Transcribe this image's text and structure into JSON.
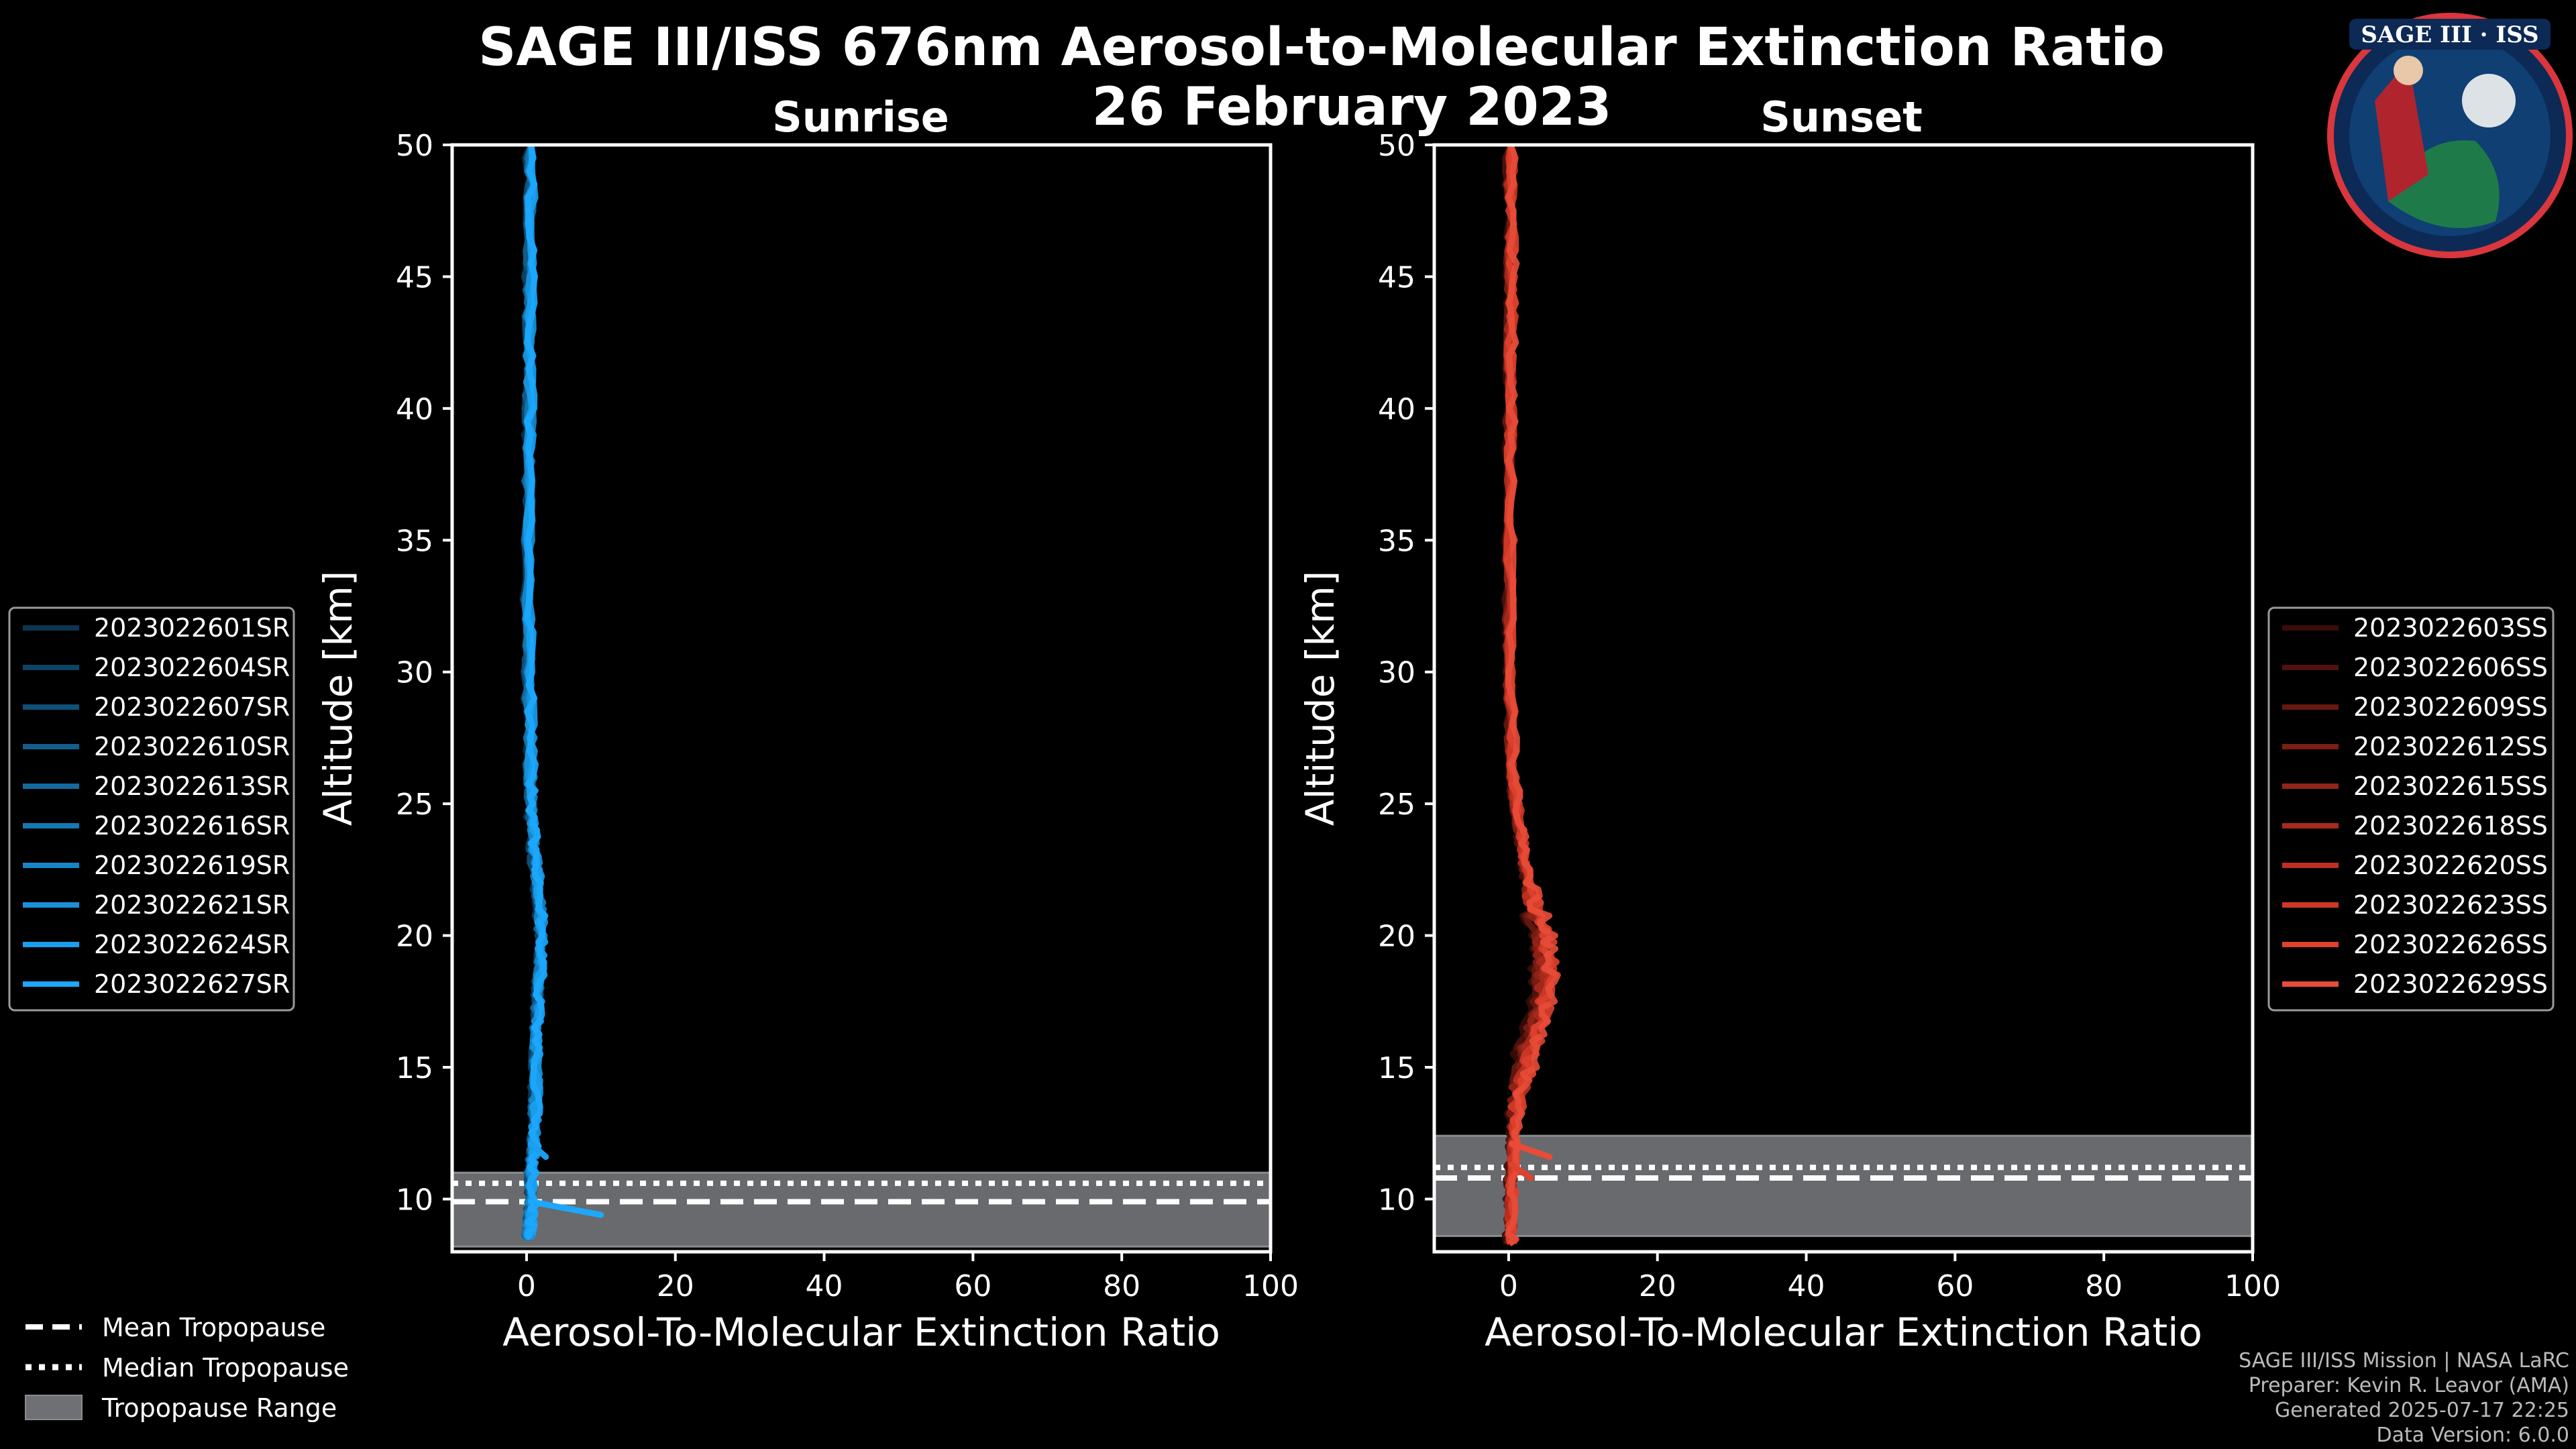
{
  "title_line1": "SAGE III/ISS 676nm Aerosol-to-Molecular Extinction Ratio",
  "title_line2": "26 February 2023",
  "logo": {
    "text": "SAGE III · ISS",
    "icon": "sage-mission-patch"
  },
  "chart_data": [
    {
      "type": "line",
      "panel": "sunrise",
      "title": "Sunrise",
      "xlabel": "Aerosol-To-Molecular Extinction Ratio",
      "ylabel": "Altitude [km]",
      "xlim": [
        -10,
        100
      ],
      "ylim": [
        8,
        50
      ],
      "xticks": [
        "0",
        "20",
        "40",
        "60",
        "80",
        "100"
      ],
      "yticks": [
        "10",
        "15",
        "20",
        "25",
        "30",
        "35",
        "40",
        "45",
        "50"
      ],
      "tropopause": {
        "mean": 9.9,
        "median": 10.6,
        "range": [
          8.2,
          11.0
        ]
      },
      "colors": [
        "#0b3552",
        "#0d4366",
        "#0f5079",
        "#115e8d",
        "#126ba0",
        "#1479b4",
        "#1686c7",
        "#1893db",
        "#1a9eee",
        "#1ca8ff"
      ],
      "series": [
        {
          "name": "2023022601SR"
        },
        {
          "name": "2023022604SR"
        },
        {
          "name": "2023022607SR"
        },
        {
          "name": "2023022610SR"
        },
        {
          "name": "2023022613SR"
        },
        {
          "name": "2023022616SR"
        },
        {
          "name": "2023022619SR"
        },
        {
          "name": "2023022621SR"
        },
        {
          "name": "2023022624SR"
        },
        {
          "name": "2023022627SR"
        }
      ],
      "profile": {
        "y": [
          8.5,
          9,
          9.5,
          10,
          11,
          11.5,
          12,
          13,
          14,
          15,
          16,
          17,
          18,
          19,
          20,
          21,
          22,
          23,
          24,
          25,
          26,
          28,
          30,
          32,
          35,
          38,
          40,
          42,
          44,
          46,
          48,
          50
        ],
        "x": [
          0.2,
          0.4,
          0.5,
          0.6,
          0.6,
          0.8,
          1.0,
          1.0,
          1.2,
          1.2,
          1.3,
          1.4,
          1.6,
          1.8,
          1.9,
          1.8,
          1.5,
          1.0,
          0.8,
          0.6,
          0.5,
          0.4,
          0.3,
          0.2,
          0.2,
          0.3,
          0.4,
          0.3,
          0.4,
          0.5,
          0.5,
          0.6
        ]
      },
      "spikes": [
        [
          9.4,
          10.0
        ],
        [
          11.6,
          2.6
        ]
      ]
    },
    {
      "type": "line",
      "panel": "sunset",
      "title": "Sunset",
      "xlabel": "Aerosol-To-Molecular Extinction Ratio",
      "ylabel": "Altitude [km]",
      "xlim": [
        -10,
        100
      ],
      "ylim": [
        8,
        50
      ],
      "xticks": [
        "0",
        "20",
        "40",
        "60",
        "80",
        "100"
      ],
      "yticks": [
        "10",
        "15",
        "20",
        "25",
        "30",
        "35",
        "40",
        "45",
        "50"
      ],
      "tropopause": {
        "mean": 10.8,
        "median": 11.2,
        "range": [
          8.6,
          12.4
        ]
      },
      "colors": [
        "#3a0c08",
        "#50120c",
        "#661810",
        "#7c1e14",
        "#922418",
        "#a82a1c",
        "#be3020",
        "#d03826",
        "#de412e",
        "#e84c38"
      ],
      "series": [
        {
          "name": "2023022603SS"
        },
        {
          "name": "2023022606SS"
        },
        {
          "name": "2023022609SS"
        },
        {
          "name": "2023022612SS"
        },
        {
          "name": "2023022615SS"
        },
        {
          "name": "2023022618SS"
        },
        {
          "name": "2023022620SS"
        },
        {
          "name": "2023022623SS"
        },
        {
          "name": "2023022626SS"
        },
        {
          "name": "2023022629SS"
        }
      ],
      "profile": {
        "y": [
          8.3,
          9,
          10,
          11,
          12,
          13,
          14,
          15,
          16,
          17,
          18,
          19,
          20,
          21,
          22,
          23,
          24,
          25,
          26,
          28,
          30,
          32,
          35,
          38,
          40,
          42,
          44,
          46,
          48,
          50
        ],
        "x": [
          0.3,
          0.2,
          0.3,
          0.4,
          0.6,
          0.8,
          1.2,
          2.0,
          3.0,
          4.0,
          4.6,
          4.8,
          4.4,
          3.5,
          2.6,
          2.0,
          1.5,
          1.0,
          0.6,
          0.3,
          0.2,
          0.1,
          0.1,
          0.1,
          0.2,
          0.2,
          0.3,
          0.3,
          0.2,
          0.3
        ]
      },
      "spikes": [
        [
          11.6,
          5.5
        ],
        [
          10.8,
          3.0
        ]
      ]
    }
  ],
  "tropo_legend": {
    "mean": "Mean Tropopause",
    "median": "Median Tropopause",
    "range": "Tropopause Range"
  },
  "credits": {
    "line1": "SAGE III/ISS Mission | NASA LaRC",
    "line2": "Preparer: Kevin R. Leavor (AMA)",
    "line3": "Generated 2025-07-17 22:25",
    "line4": "Data Version: 6.0.0"
  }
}
